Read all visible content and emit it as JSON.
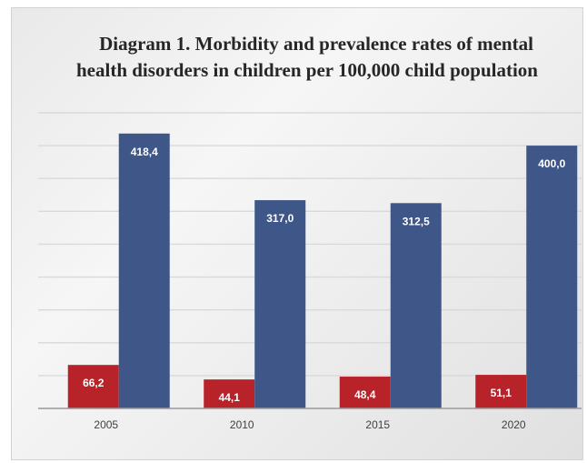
{
  "chart_data": {
    "type": "bar",
    "title": "Diagram 1. Morbidity and prevalence rates of mental health disorders in children per 100,000 child population",
    "title_lines": [
      "Diagram 1. Morbidity and prevalence rates of mental",
      "health disorders in children per 100,000 child population"
    ],
    "categories": [
      "2005",
      "2010",
      "2015",
      "2020"
    ],
    "series": [
      {
        "values": [
          66.2,
          44.1,
          48.4,
          51.1
        ],
        "labels": [
          "66,2",
          "44,1",
          "48,4",
          "51,1"
        ],
        "color": "#b8232a"
      },
      {
        "values": [
          418.4,
          317.0,
          312.5,
          400.0
        ],
        "labels": [
          "418,4",
          "317,0",
          "312,5",
          "400,0"
        ],
        "color": "#3f5689"
      }
    ],
    "xlabel": "",
    "ylabel": "",
    "ylim": [
      0,
      450
    ],
    "gridlines": [
      50,
      100,
      150,
      200,
      250,
      300,
      350,
      400,
      450
    ],
    "grid": true,
    "y_tick_labels_shown": false,
    "legend": "none"
  }
}
